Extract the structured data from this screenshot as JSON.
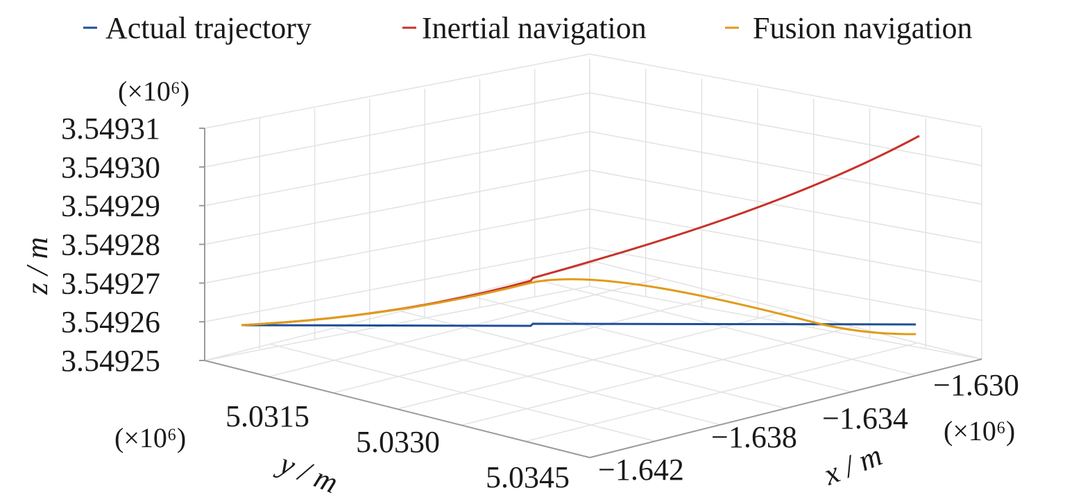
{
  "chart_data": {
    "type": "line",
    "projection": "3d",
    "legend_position": "top",
    "grid": true,
    "series": [
      {
        "name": "Actual trajectory",
        "color": "#1f4e9a"
      },
      {
        "name": "Inertial navigation",
        "color": "#c8322a"
      },
      {
        "name": "Fusion navigation",
        "color": "#e09b1a"
      }
    ],
    "z_axis": {
      "label": "z / m",
      "multiplier": "(×10⁶)",
      "ticks": [
        "3.54931",
        "3.54930",
        "3.54929",
        "3.54928",
        "3.54927",
        "3.54926",
        "3.54925"
      ]
    },
    "y_axis": {
      "label": "y / m",
      "multiplier": "(×10⁶)",
      "ticks": [
        "5.0315",
        "5.0330",
        "5.0345"
      ]
    },
    "x_axis": {
      "label": "x / m",
      "multiplier": "(×10⁶)",
      "ticks": [
        "−1.642",
        "−1.638",
        "−1.634",
        "−1.630"
      ]
    }
  }
}
